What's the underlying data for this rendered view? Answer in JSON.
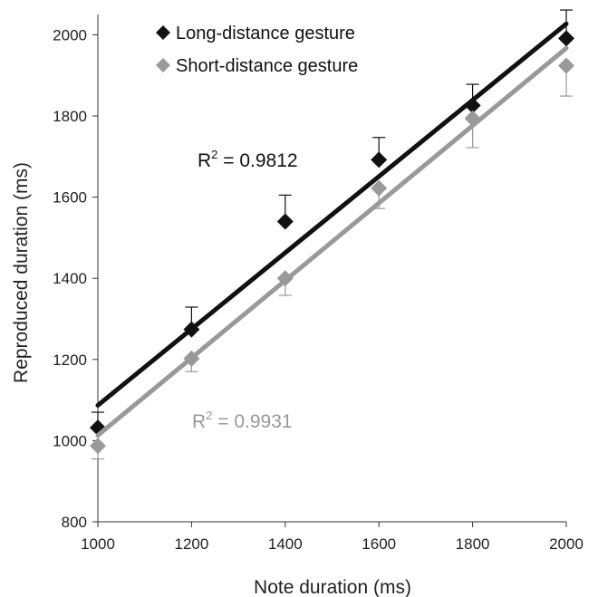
{
  "chart_data": {
    "type": "scatter",
    "xlabel": "Note duration (ms)",
    "ylabel": "Reproduced duration (ms)",
    "xlim": [
      1000,
      2000
    ],
    "ylim": [
      800,
      2050
    ],
    "x_ticks": [
      "1000",
      "1200",
      "1400",
      "1600",
      "1800",
      "2000"
    ],
    "y_ticks": [
      "800",
      "1000",
      "1200",
      "1400",
      "1600",
      "1800",
      "2000"
    ],
    "grid": false,
    "legend_position": "top-left",
    "series": [
      {
        "name": "Long-distance gesture",
        "color": "#111111",
        "marker": "diamond",
        "x": [
          1000,
          1200,
          1400,
          1600,
          1800,
          2000
        ],
        "y": [
          1032,
          1274,
          1540,
          1692,
          1826,
          1991
        ],
        "error": [
          38,
          55,
          65,
          55,
          52,
          70
        ],
        "error_direction": "up",
        "trendline": {
          "start": [
            1000,
            1087
          ],
          "end": [
            2000,
            2027
          ]
        },
        "r2_label": "R",
        "r2_sup": "2",
        "r2_value": " = 0.9812"
      },
      {
        "name": "Short-distance gesture",
        "color": "#999999",
        "marker": "diamond",
        "x": [
          1000,
          1200,
          1400,
          1600,
          1800,
          2000
        ],
        "y": [
          987,
          1202,
          1400,
          1622,
          1794,
          1924
        ],
        "error": [
          32,
          32,
          42,
          50,
          72,
          75
        ],
        "error_direction": "down",
        "trendline": {
          "start": [
            1000,
            1013
          ],
          "end": [
            2000,
            1967
          ]
        },
        "r2_label": "R",
        "r2_sup": "2",
        "r2_value": " = 0.9931"
      }
    ]
  }
}
